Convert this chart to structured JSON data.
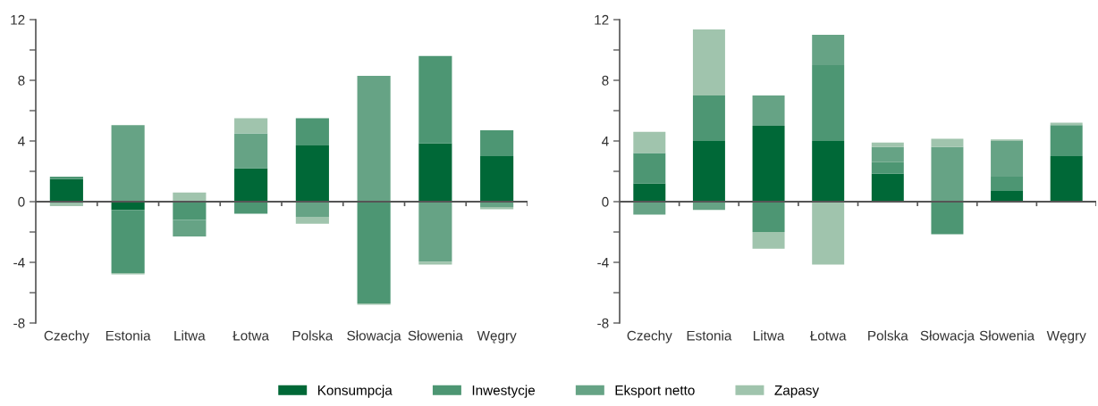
{
  "chart_data": [
    {
      "type": "bar",
      "stacked": true,
      "legend": "bottom",
      "categories": [
        "Czechy",
        "Estonia",
        "Litwa",
        "Łotwa",
        "Polska",
        "Słowacja",
        "Słowenia",
        "Węgry"
      ],
      "ylim": [
        -8,
        12
      ],
      "yticks": [
        -8,
        {
          "value": -6,
          "label": null
        },
        -4,
        {
          "value": -2,
          "label": null
        },
        0,
        {
          "value": 2,
          "label": null
        },
        4,
        {
          "value": 6,
          "label": null
        },
        8,
        {
          "value": 10,
          "label": null
        },
        12
      ],
      "series": [
        {
          "name": "Konsumpcja",
          "color": "#006837",
          "values": [
            1.5,
            -0.55,
            0,
            2.2,
            3.7,
            0,
            3.85,
            3.0
          ]
        },
        {
          "name": "Inwestycje",
          "color": "#4d9673",
          "values": [
            0.15,
            -4.15,
            -1.2,
            -0.8,
            1.8,
            -6.7,
            5.75,
            1.7
          ]
        },
        {
          "name": "Eksport netto",
          "color": "#66a385",
          "values": [
            -0.1,
            5.05,
            -1.1,
            2.3,
            -1.0,
            8.3,
            -3.95,
            -0.35
          ]
        },
        {
          "name": "Zapasy",
          "color": "#a0c4ad",
          "values": [
            -0.2,
            -0.1,
            0.6,
            1.0,
            -0.45,
            -0.1,
            -0.2,
            -0.15
          ]
        }
      ]
    },
    {
      "type": "bar",
      "stacked": true,
      "categories": [
        "Czechy",
        "Estonia",
        "Litwa",
        "Łotwa",
        "Polska",
        "Słowacja",
        "Słowenia",
        "Węgry"
      ],
      "ylim": [
        -8,
        12
      ],
      "yticks": [
        -8,
        {
          "value": -6,
          "label": null
        },
        -4,
        {
          "value": -2,
          "label": null
        },
        0,
        {
          "value": 2,
          "label": null
        },
        4,
        {
          "value": 6,
          "label": null
        },
        8,
        {
          "value": 10,
          "label": null
        },
        12
      ],
      "series": [
        {
          "color": "#006837",
          "values": [
            1.2,
            4.0,
            5.0,
            4.0,
            1.85,
            0,
            0.7,
            3.0
          ]
        },
        {
          "color": "#4d9673",
          "values": [
            2.0,
            3.0,
            -2.0,
            5.0,
            0.75,
            -2.15,
            0.95,
            2.05
          ]
        },
        {
          "color": "#66a385",
          "values": [
            -0.85,
            -0.55,
            2.0,
            2.0,
            1.0,
            3.6,
            2.35,
            0
          ]
        },
        {
          "color": "#a0c4ad",
          "values": [
            1.4,
            4.35,
            -1.1,
            -4.15,
            0.3,
            0.55,
            0.1,
            0.15
          ]
        }
      ]
    }
  ]
}
